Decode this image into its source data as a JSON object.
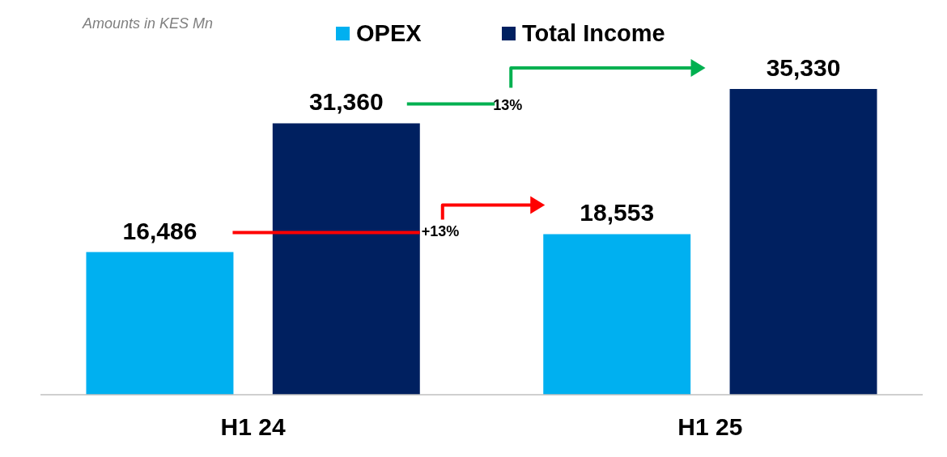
{
  "chart_data": {
    "type": "bar",
    "categories": [
      "H1 24",
      "H1 25"
    ],
    "series": [
      {
        "name": "OPEX",
        "color": "#00b0f0",
        "values": [
          16486,
          18553
        ],
        "value_labels": [
          "16,486",
          "18,553"
        ]
      },
      {
        "name": "Total Income",
        "color": "#002060",
        "values": [
          31360,
          35330
        ],
        "value_labels": [
          "31,360",
          "35,330"
        ]
      }
    ],
    "legend": "top",
    "annotations": [
      "Amounts in KES Mn",
      "13%",
      "+13%"
    ]
  }
}
